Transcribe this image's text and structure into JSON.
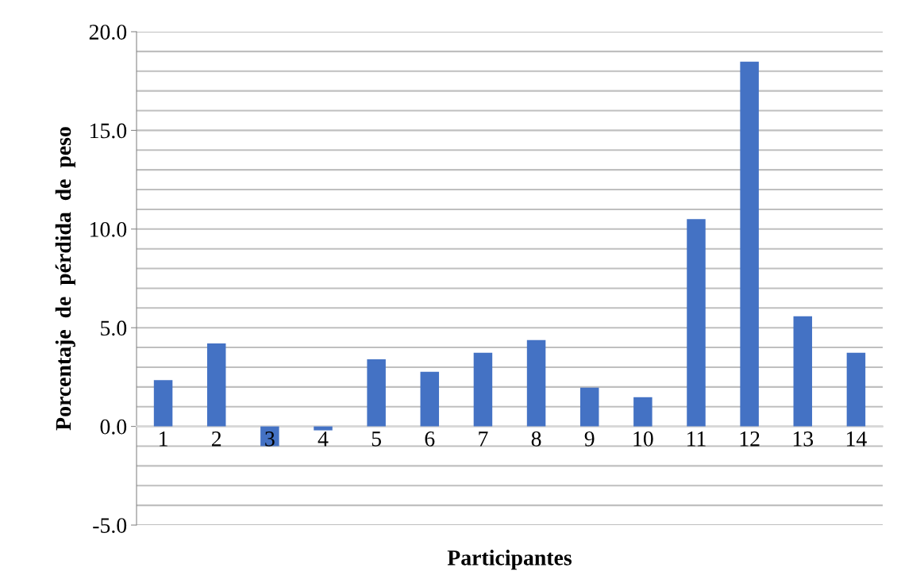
{
  "chart_data": {
    "type": "bar",
    "xlabel": "Participantes",
    "ylabel": "Porcentaje  de  pérdida  de  peso",
    "categories": [
      "1",
      "2",
      "3",
      "4",
      "5",
      "6",
      "7",
      "8",
      "9",
      "10",
      "11",
      "12",
      "13",
      "14"
    ],
    "values": [
      2.35,
      4.2,
      -1.0,
      -0.2,
      3.4,
      2.77,
      3.73,
      4.38,
      1.96,
      1.48,
      10.5,
      18.48,
      5.58,
      3.73
    ],
    "color": "#4472c4",
    "ylim": [
      -5,
      20
    ],
    "yticks": [
      {
        "value": -5,
        "label": "-5.0"
      },
      {
        "value": -4,
        "label": null
      },
      {
        "value": -3,
        "label": null
      },
      {
        "value": -2,
        "label": null
      },
      {
        "value": -1,
        "label": null
      },
      {
        "value": 0,
        "label": "0.0"
      },
      {
        "value": 1,
        "label": null
      },
      {
        "value": 2,
        "label": null
      },
      {
        "value": 3,
        "label": null
      },
      {
        "value": 4,
        "label": null
      },
      {
        "value": 5,
        "label": "5.0"
      },
      {
        "value": 6,
        "label": null
      },
      {
        "value": 7,
        "label": null
      },
      {
        "value": 8,
        "label": null
      },
      {
        "value": 9,
        "label": null
      },
      {
        "value": 10,
        "label": "10.0"
      },
      {
        "value": 11,
        "label": null
      },
      {
        "value": 12,
        "label": null
      },
      {
        "value": 13,
        "label": null
      },
      {
        "value": 14,
        "label": null
      },
      {
        "value": 15,
        "label": "15.0"
      },
      {
        "value": 16,
        "label": null
      },
      {
        "value": 17,
        "label": null
      },
      {
        "value": 18,
        "label": null
      },
      {
        "value": 19,
        "label": null
      },
      {
        "value": 20,
        "label": "20.0"
      }
    ],
    "grid": "y"
  }
}
